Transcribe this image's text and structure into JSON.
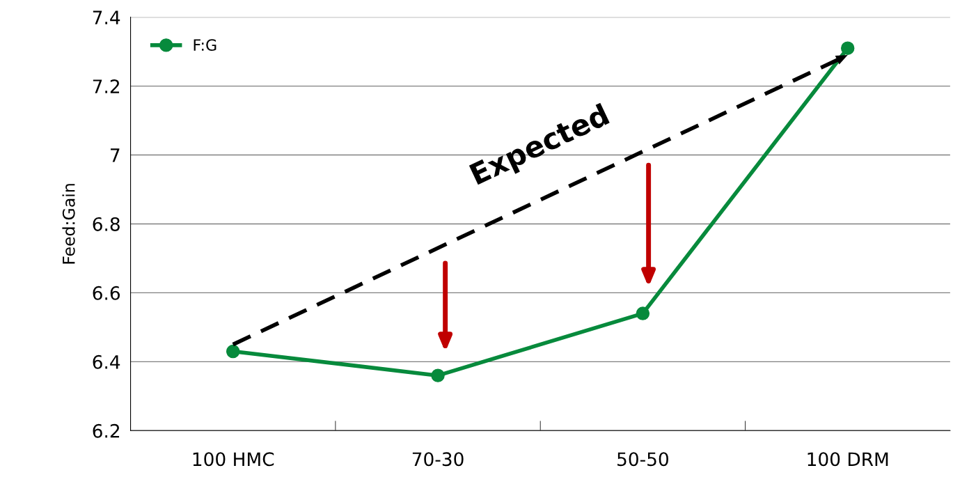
{
  "chart_data": {
    "type": "line",
    "ylabel": "Feed:Gain",
    "categories": [
      "100 HMC",
      "70-30",
      "50-50",
      "100 DRM"
    ],
    "series": [
      {
        "name": "F:G",
        "color": "#078a3c",
        "values": [
          6.43,
          6.36,
          6.54,
          7.31
        ],
        "marker": "circle",
        "line_style": "solid"
      },
      {
        "name": "Expected",
        "color": "#000000",
        "values": [
          6.45,
          null,
          null,
          7.29
        ],
        "marker": "none",
        "line_style": "dashed"
      }
    ],
    "ylim": [
      6.2,
      7.4
    ],
    "yticks": [
      6.2,
      6.4,
      6.6,
      6.8,
      7,
      7.2,
      7.4
    ],
    "grid": "y",
    "legend": "top left"
  }
}
